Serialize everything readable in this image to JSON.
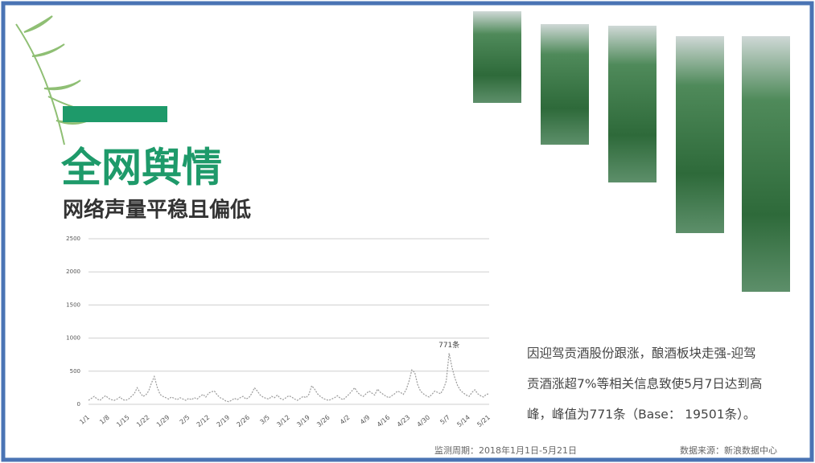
{
  "slide": {
    "title": "全网舆情",
    "subtitle": "网络声量平稳且偏低",
    "description_lines": [
      "因迎驾贡酒股份跟涨，酿酒板块走强-迎驾",
      "贡酒涨超7%等相关信息致使5月7日达到高",
      "峰，峰值为771条（Base： 19501条）。"
    ],
    "period": "监测周期：2018年1月1日-5月21日",
    "source": "数据来源：新浪数据中心"
  },
  "chart_data": {
    "type": "line",
    "color": "#9a9a9a",
    "grid": true,
    "ylim": [
      0,
      2500
    ],
    "yticks": [
      0,
      500,
      1000,
      1500,
      2000,
      2500
    ],
    "categories": [
      "1/1",
      null,
      null,
      null,
      null,
      null,
      null,
      "1/8",
      null,
      null,
      null,
      null,
      null,
      null,
      "1/15",
      null,
      null,
      null,
      null,
      null,
      null,
      "1/22",
      null,
      null,
      null,
      null,
      null,
      null,
      "1/29",
      null,
      null,
      null,
      null,
      null,
      null,
      "2/5",
      null,
      null,
      null,
      null,
      null,
      null,
      "2/12",
      null,
      null,
      null,
      null,
      null,
      null,
      "2/19",
      null,
      null,
      null,
      null,
      null,
      null,
      "2/26",
      null,
      null,
      null,
      null,
      null,
      null,
      "3/5",
      null,
      null,
      null,
      null,
      null,
      null,
      "3/12",
      null,
      null,
      null,
      null,
      null,
      null,
      "3/19",
      null,
      null,
      null,
      null,
      null,
      null,
      "3/26",
      null,
      null,
      null,
      null,
      null,
      null,
      "4/2",
      null,
      null,
      null,
      null,
      null,
      null,
      "4/9",
      null,
      null,
      null,
      null,
      null,
      null,
      "4/16",
      null,
      null,
      null,
      null,
      null,
      null,
      "4/23",
      null,
      null,
      null,
      null,
      null,
      null,
      "4/30",
      null,
      null,
      null,
      null,
      null,
      null,
      "5/7",
      null,
      null,
      null,
      null,
      null,
      null,
      "5/14",
      null,
      null,
      null,
      null,
      null,
      null,
      "5/21"
    ],
    "values": [
      60,
      90,
      120,
      80,
      60,
      100,
      130,
      90,
      70,
      60,
      80,
      110,
      70,
      60,
      80,
      120,
      160,
      250,
      180,
      120,
      140,
      200,
      320,
      420,
      260,
      150,
      120,
      100,
      80,
      110,
      90,
      70,
      100,
      80,
      60,
      90,
      70,
      100,
      80,
      120,
      150,
      110,
      170,
      190,
      200,
      140,
      100,
      80,
      50,
      40,
      60,
      90,
      70,
      100,
      120,
      80,
      100,
      160,
      250,
      200,
      140,
      110,
      90,
      80,
      120,
      100,
      140,
      90,
      70,
      100,
      130,
      110,
      80,
      60,
      90,
      120,
      100,
      150,
      280,
      230,
      160,
      120,
      90,
      70,
      60,
      80,
      100,
      130,
      90,
      70,
      110,
      150,
      200,
      250,
      180,
      140,
      120,
      160,
      200,
      170,
      140,
      230,
      180,
      150,
      120,
      100,
      130,
      160,
      200,
      180,
      150,
      220,
      350,
      520,
      480,
      300,
      200,
      160,
      130,
      110,
      150,
      200,
      180,
      160,
      230,
      350,
      771,
      560,
      400,
      280,
      210,
      170,
      140,
      120,
      180,
      220,
      160,
      130,
      110,
      150,
      160
    ],
    "value_labels": [
      null,
      null,
      null,
      null,
      null,
      null,
      null,
      null,
      null,
      null,
      null,
      null,
      null,
      null,
      null,
      null,
      null,
      null,
      null,
      null,
      null,
      null,
      null,
      null,
      null,
      null,
      null,
      null,
      null,
      null,
      null,
      null,
      null,
      null,
      null,
      null,
      null,
      null,
      null,
      null,
      null,
      null,
      null,
      null,
      null,
      null,
      null,
      null,
      null,
      null,
      null,
      null,
      null,
      null,
      null,
      null,
      null,
      null,
      null,
      null,
      null,
      null,
      null,
      null,
      null,
      null,
      null,
      null,
      null,
      null,
      null,
      null,
      null,
      null,
      null,
      null,
      null,
      null,
      null,
      null,
      null,
      null,
      null,
      null,
      null,
      null,
      null,
      null,
      null,
      null,
      null,
      null,
      null,
      null,
      null,
      null,
      null,
      null,
      null,
      null,
      null,
      null,
      null,
      null,
      null,
      null,
      null,
      null,
      null,
      null,
      null,
      null,
      null,
      null,
      null,
      null,
      null,
      null,
      null,
      null,
      null,
      null,
      null,
      null,
      null,
      null,
      "771条",
      null,
      null,
      null,
      null,
      null,
      null,
      null,
      null,
      null,
      null,
      null,
      null,
      null,
      null
    ]
  }
}
